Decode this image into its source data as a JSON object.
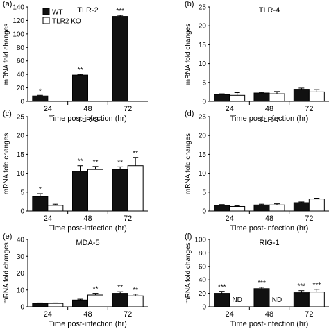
{
  "chart_data": [
    {
      "type": "bar",
      "panel_label": "(a)",
      "title": "TLR-2",
      "xlabel": "Time post-infection (hr)",
      "ylabel": "mRNA fold changes",
      "categories": [
        "24",
        "48",
        "72"
      ],
      "ylim": [
        0,
        140
      ],
      "yticks": [
        0,
        20,
        40,
        60,
        80,
        100,
        120,
        140
      ],
      "legend": {
        "position": "top-left",
        "entries": [
          "WT",
          "TLR2 KO"
        ]
      },
      "series": [
        {
          "name": "WT",
          "color": "#111111",
          "values": [
            8,
            39,
            126
          ],
          "errors": [
            1,
            1,
            1.5
          ]
        },
        {
          "name": "TLR2 KO",
          "color": "#ffffff",
          "values": [
            null,
            null,
            null
          ],
          "errors": [
            0,
            0,
            0
          ]
        }
      ],
      "annotations": [
        {
          "series": 0,
          "category": 0,
          "text": "*"
        },
        {
          "series": 0,
          "category": 1,
          "text": "**"
        },
        {
          "series": 0,
          "category": 2,
          "text": "***"
        }
      ]
    },
    {
      "type": "bar",
      "panel_label": "(b)",
      "title": "TLR-4",
      "xlabel": "Time post-infection (hr)",
      "ylabel": "mRNA fold changes",
      "categories": [
        "24",
        "48",
        "72"
      ],
      "ylim": [
        0,
        25
      ],
      "yticks": [
        0,
        5,
        10,
        15,
        20,
        25
      ],
      "series": [
        {
          "name": "WT",
          "color": "#111111",
          "values": [
            1.8,
            2.2,
            3.2
          ],
          "errors": [
            0.2,
            0.2,
            0.3
          ]
        },
        {
          "name": "TLR2 KO",
          "color": "#ffffff",
          "values": [
            1.6,
            2.0,
            2.5
          ],
          "errors": [
            0.7,
            0.6,
            0.6
          ]
        }
      ],
      "annotations": []
    },
    {
      "type": "bar",
      "panel_label": "(c)",
      "title": "TLR-3",
      "xlabel": "Time post-infection (hr)",
      "ylabel": "mRNA fold changes",
      "categories": [
        "24",
        "48",
        "72"
      ],
      "ylim": [
        0,
        25
      ],
      "yticks": [
        0,
        5,
        10,
        15,
        20,
        25
      ],
      "series": [
        {
          "name": "WT",
          "color": "#111111",
          "values": [
            3.8,
            10.5,
            11
          ],
          "errors": [
            0.8,
            1.5,
            0.7
          ]
        },
        {
          "name": "TLR2 KO",
          "color": "#ffffff",
          "values": [
            1.5,
            11,
            12
          ],
          "errors": [
            0.3,
            0.8,
            2.2
          ]
        }
      ],
      "annotations": [
        {
          "series": 0,
          "category": 0,
          "text": "*"
        },
        {
          "series": 0,
          "category": 1,
          "text": "**"
        },
        {
          "series": 1,
          "category": 1,
          "text": "**"
        },
        {
          "series": 0,
          "category": 2,
          "text": "**"
        },
        {
          "series": 1,
          "category": 2,
          "text": "**"
        }
      ]
    },
    {
      "type": "bar",
      "panel_label": "(d)",
      "title": "TLR-7",
      "xlabel": "Time post-infection (hr)",
      "ylabel": "mRNA fold changes",
      "categories": [
        "24",
        "48",
        "72"
      ],
      "ylim": [
        0,
        25
      ],
      "yticks": [
        0,
        5,
        10,
        15,
        20,
        25
      ],
      "series": [
        {
          "name": "WT",
          "color": "#111111",
          "values": [
            1.5,
            1.6,
            2.2
          ],
          "errors": [
            0.2,
            0.2,
            0.2
          ]
        },
        {
          "name": "TLR2 KO",
          "color": "#ffffff",
          "values": [
            1.2,
            1.6,
            3.2
          ],
          "errors": [
            0.2,
            0.3,
            0.2
          ]
        }
      ],
      "annotations": []
    },
    {
      "type": "bar",
      "panel_label": "(e)",
      "title": "MDA-5",
      "xlabel": "Time post-infection (hr)",
      "ylabel": "mRNA fold changes",
      "categories": [
        "24",
        "48",
        "72"
      ],
      "ylim": [
        0,
        40
      ],
      "yticks": [
        0,
        10,
        20,
        30,
        40
      ],
      "series": [
        {
          "name": "WT",
          "color": "#111111",
          "values": [
            2,
            4,
            8
          ],
          "errors": [
            0.3,
            0.5,
            1
          ]
        },
        {
          "name": "TLR2 KO",
          "color": "#ffffff",
          "values": [
            2,
            7,
            6.5
          ],
          "errors": [
            0.3,
            1,
            1
          ]
        }
      ],
      "annotations": [
        {
          "series": 1,
          "category": 1,
          "text": "**"
        },
        {
          "series": 0,
          "category": 2,
          "text": "**"
        },
        {
          "series": 1,
          "category": 2,
          "text": "**"
        }
      ]
    },
    {
      "type": "bar",
      "panel_label": "(f)",
      "title": "RIG-1",
      "xlabel": "Time post-infection (hr)",
      "ylabel": "mRNA fold changes",
      "categories": [
        "24",
        "48",
        "72"
      ],
      "ylim": [
        0,
        100
      ],
      "yticks": [
        0,
        20,
        40,
        60,
        80,
        100
      ],
      "series": [
        {
          "name": "WT",
          "color": "#111111",
          "values": [
            20,
            27,
            21
          ],
          "errors": [
            3,
            2,
            3
          ]
        },
        {
          "name": "TLR2 KO",
          "color": "#ffffff",
          "values": [
            null,
            null,
            22
          ],
          "errors": [
            0,
            0,
            4
          ]
        }
      ],
      "annotations": [
        {
          "series": 0,
          "category": 0,
          "text": "***"
        },
        {
          "series": 1,
          "category": 0,
          "text": "ND"
        },
        {
          "series": 0,
          "category": 1,
          "text": "***"
        },
        {
          "series": 1,
          "category": 1,
          "text": "ND"
        },
        {
          "series": 0,
          "category": 2,
          "text": "***"
        },
        {
          "series": 1,
          "category": 2,
          "text": "***"
        }
      ]
    }
  ]
}
